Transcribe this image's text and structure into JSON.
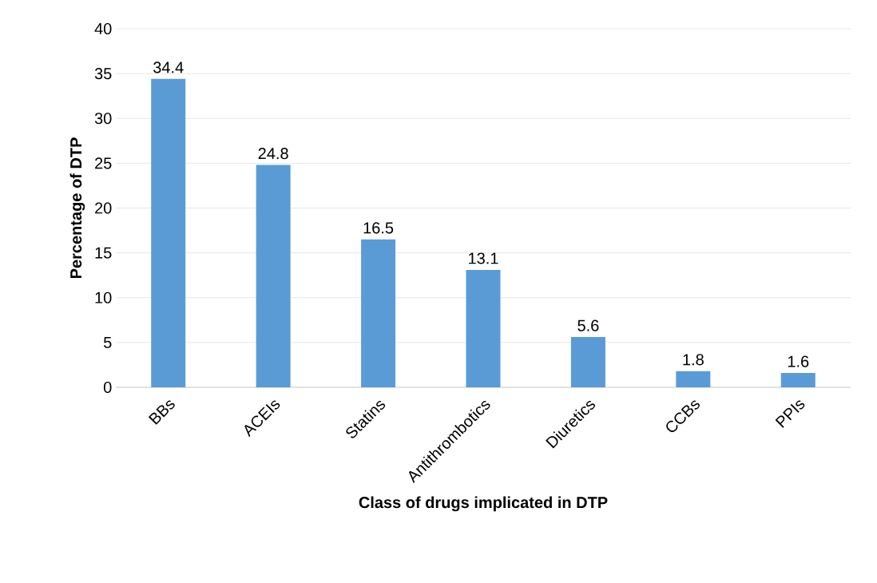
{
  "chart_data": {
    "type": "bar",
    "xlabel": "Class of drugs implicated in DTP",
    "ylabel": "Percentage of DTP",
    "categories": [
      "BBs",
      "ACEIs",
      "Statins",
      "Antithrombotics",
      "Diuretics",
      "CCBs",
      "PPIs"
    ],
    "values": [
      34.4,
      24.8,
      16.5,
      13.1,
      5.6,
      1.8,
      1.6
    ],
    "color": "#5b9bd5",
    "ylim": [
      0,
      40
    ],
    "yticks": [
      0,
      5,
      10,
      15,
      20,
      25,
      30,
      35,
      40
    ],
    "grid": "y",
    "data_labels": true
  }
}
